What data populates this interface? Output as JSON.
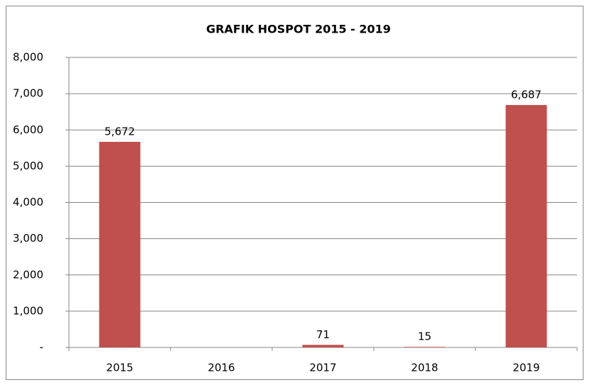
{
  "chart_data": {
    "type": "bar",
    "title": "GRAFIK HOSPOT 2015 - 2019",
    "categories": [
      "2015",
      "2016",
      "2017",
      "2018",
      "2019"
    ],
    "values": [
      5672,
      0,
      71,
      15,
      6687
    ],
    "value_labels": [
      "5,672",
      null,
      "71",
      "15",
      "6,687"
    ],
    "color": "#c0504d",
    "ylim": [
      0,
      8000
    ],
    "yticks": [
      {
        "value": 0,
        "label": "-"
      },
      {
        "value": 1000,
        "label": "1,000"
      },
      {
        "value": 2000,
        "label": "2,000"
      },
      {
        "value": 3000,
        "label": "3,000"
      },
      {
        "value": 4000,
        "label": "4,000"
      },
      {
        "value": 5000,
        "label": "5,000"
      },
      {
        "value": 6000,
        "label": "6,000"
      },
      {
        "value": 7000,
        "label": "7,000"
      },
      {
        "value": 8000,
        "label": "8,000"
      }
    ],
    "grid": true
  }
}
